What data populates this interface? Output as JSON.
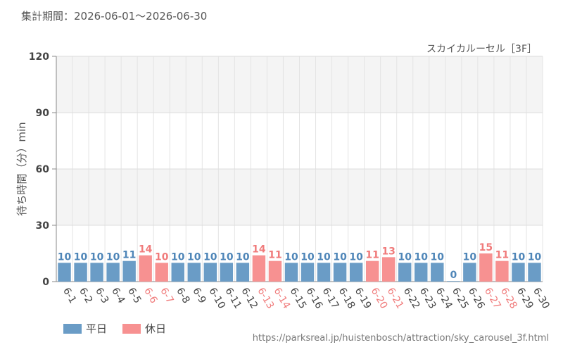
{
  "header": {
    "period_text": "集計期間：2026-06-01～2026-06-30"
  },
  "chart_data": {
    "type": "bar",
    "title": "スカイカルーセル［3F］",
    "ylabel": "待ち時間（分）min",
    "xlabel": "",
    "ylim": [
      0,
      120
    ],
    "yticks": [
      0,
      30,
      60,
      90,
      120
    ],
    "categories": [
      "6-1",
      "6-2",
      "6-3",
      "6-4",
      "6-5",
      "6-6",
      "6-7",
      "6-8",
      "6-9",
      "6-10",
      "6-11",
      "6-12",
      "6-13",
      "6-14",
      "6-15",
      "6-16",
      "6-17",
      "6-18",
      "6-19",
      "6-20",
      "6-21",
      "6-22",
      "6-23",
      "6-24",
      "6-25",
      "6-26",
      "6-27",
      "6-28",
      "6-29",
      "6-30"
    ],
    "values": [
      10,
      10,
      10,
      10,
      11,
      14,
      10,
      10,
      10,
      10,
      10,
      10,
      14,
      11,
      10,
      10,
      10,
      10,
      10,
      11,
      13,
      10,
      10,
      10,
      0,
      10,
      15,
      11,
      10,
      10
    ],
    "holiday": [
      false,
      false,
      false,
      false,
      false,
      true,
      true,
      false,
      false,
      false,
      false,
      false,
      true,
      true,
      false,
      false,
      false,
      false,
      false,
      true,
      true,
      false,
      false,
      false,
      false,
      false,
      true,
      true,
      false,
      false
    ],
    "colors": {
      "weekday": "#6a9cc6",
      "weekday_text": "#4f86b8",
      "holiday": "#f79191",
      "holiday_text": "#f07b7b"
    }
  },
  "legend": {
    "weekday_label": "平日",
    "holiday_label": "休日"
  },
  "footer": {
    "source_url": "https://parksreal.jp/huistenbosch/attraction/sky_carousel_3f.html"
  }
}
